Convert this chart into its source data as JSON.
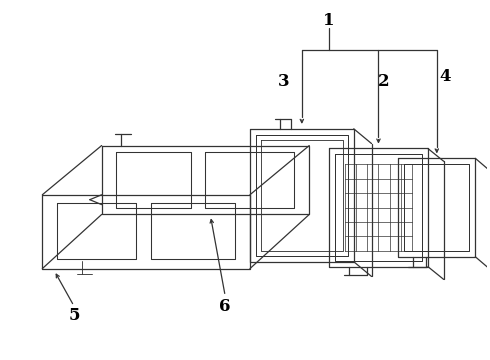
{
  "bg_color": "#ffffff",
  "line_color": "#333333",
  "label_color": "#000000",
  "lw": 0.9
}
